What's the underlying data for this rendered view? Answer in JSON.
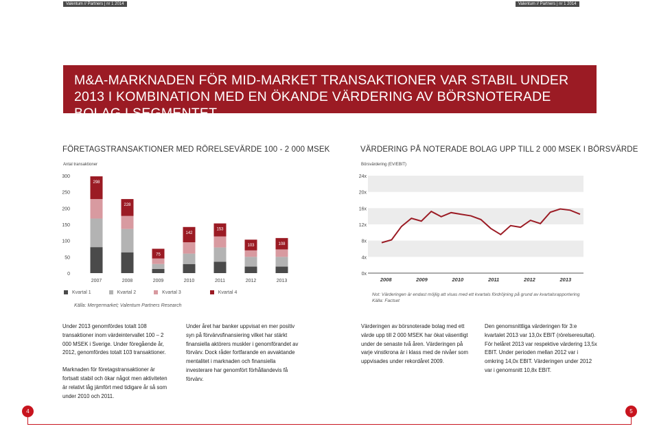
{
  "header": {
    "left_tag": "Valentum // Partners | nr 1 2014",
    "right_tag": "Valentum // Partners | nr 1 2014"
  },
  "banner": {
    "title": "M&A-MARKNADEN FÖR MID-MARKET TRANSAKTIONER VAR STABIL UNDER 2013 I KOMBINATION MED EN ÖKANDE VÄRDERING AV BÖRSNOTERADE BOLAG I SEGMENTET"
  },
  "left_chart": {
    "section_title": "FÖRETAGSTRANSAKTIONER MED RÖRELSEVÄRDE 100 - 2 000 MSEK",
    "axis_label": "Antal transaktioner",
    "source": "Källa: Mergermarket; Valentum Partners Research",
    "legend": [
      "Kvartal 1",
      "Kvartal 2",
      "Kvartal 3",
      "Kvartal 4"
    ]
  },
  "right_chart": {
    "section_title": "VÄRDERING PÅ NOTERADE BOLAG UPP TILL 2 000 MSEK I BÖRSVÄRDE",
    "axis_label": "Börsvärdering (EV/EBIT)",
    "note": "Not: Värderingen är endast möjlig att visas med ett kvartals fördröjning på grund av kvartalsrapportering",
    "source": "Källa: Factset"
  },
  "chart_data": [
    {
      "type": "bar",
      "stacked": true,
      "categories": [
        "2007",
        "2008",
        "2009",
        "2010",
        "2011",
        "2012",
        "2013"
      ],
      "series": [
        {
          "name": "Kvartal 1",
          "values": [
            80,
            64,
            13,
            28,
            35,
            20,
            20
          ]
        },
        {
          "name": "Kvartal 2",
          "values": [
            88,
            72,
            15,
            32,
            44,
            30,
            30
          ]
        },
        {
          "name": "Kvartal 3",
          "values": [
            60,
            40,
            17,
            35,
            34,
            20,
            23
          ]
        },
        {
          "name": "Kvartal 4",
          "values": [
            70,
            52,
            30,
            47,
            40,
            33,
            35
          ]
        }
      ],
      "totals": [
        298,
        228,
        75,
        142,
        153,
        103,
        108
      ],
      "yticks": [
        0,
        50,
        100,
        150,
        200,
        250,
        300
      ],
      "ylim": [
        0,
        300
      ],
      "colors": [
        "#4a4a4a",
        "#b3b3b3",
        "#d89aa0",
        "#9b1b24"
      ],
      "grid": false,
      "legend_position": "bottom"
    },
    {
      "type": "line",
      "x_labels": [
        "2008",
        "2009",
        "2010",
        "2011",
        "2012",
        "2013"
      ],
      "points_per_year": 4,
      "values": [
        7.5,
        8.2,
        11.5,
        13.5,
        12.8,
        15.2,
        13.9,
        14.9,
        14.5,
        14.1,
        13.2,
        11.0,
        9.5,
        11.7,
        11.3,
        13.0,
        12.2,
        15.0,
        15.8,
        15.5,
        14.5
      ],
      "yticks": [
        "0x",
        "4x",
        "8x",
        "12x",
        "16x",
        "20x",
        "24x"
      ],
      "ylim": [
        0,
        24
      ],
      "line_color": "#9b1b24",
      "shaded_bands": true
    }
  ],
  "columns": {
    "c1": [
      "Under 2013 genomfördes totalt 108 transaktioner inom värdeintervallet 100 – 2 000 MSEK i Sverige. Under föregående år, 2012, genomfördes totalt 103 transaktioner.",
      "Marknaden för företagstransaktioner är fortsatt stabil och ökar något men aktiviteten är relativt låg jämfört med tidigare år så som under 2010 och 2011."
    ],
    "c2": [
      "Under året har banker uppvisat en mer positiv syn på förvärvsfinansiering vilket har stärkt finansiella aktörers muskler i genomförandet av förvärv. Dock råder fortfarande en avvaktande mentalitet i marknaden och finansiella investerare har genomfört förhållandevis få förvärv."
    ],
    "c3": [
      "Värderingen av börsnoterade bolag med ett värde upp till 2 000 MSEK har ökat väsentligt under de senaste två åren. Värderingen på varje vinstkrona är i klass med de nivåer som uppvisades under rekordåret 2009."
    ],
    "c4": [
      "Den genomsnittliga värderingen för 3:e kvartalet 2013 var 13,0x EBIT (rörelseresultat). För helåret 2013 var respektive värdering 13,5x EBIT. Under perioden mellan 2012 var i omkring 14,0x EBIT. Värderingen under 2012 var i genomsnitt 10,8x EBIT."
    ]
  },
  "footer": {
    "page_left": "4",
    "page_right": "5"
  }
}
